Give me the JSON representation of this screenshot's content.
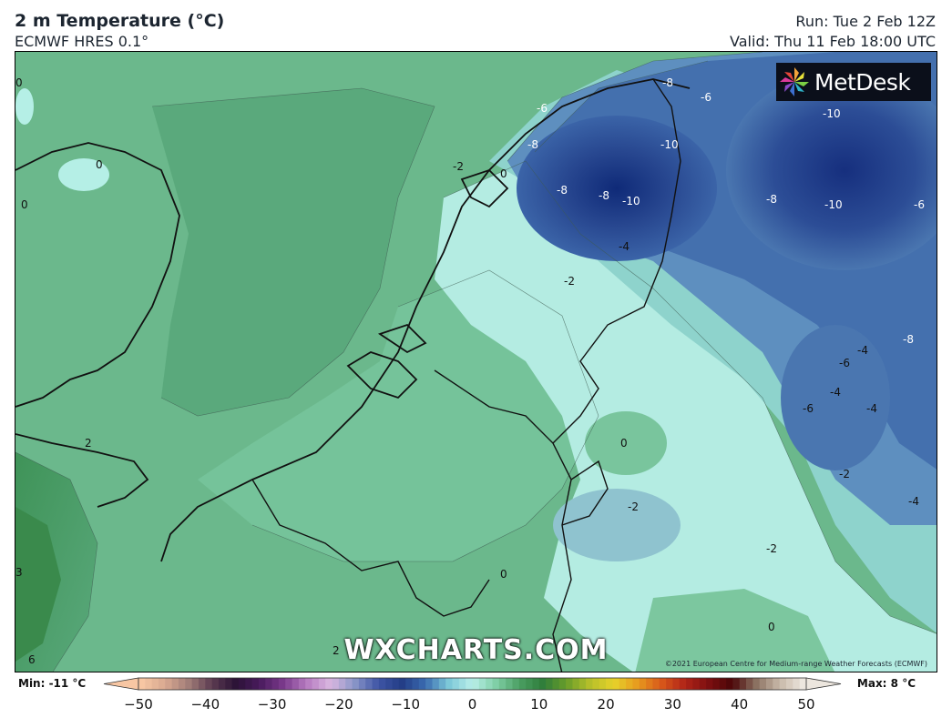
{
  "header": {
    "title": "2 m Temperature (°C)",
    "subtitle": "ECMWF HRES 0.1°",
    "run": "Run: Tue 2 Feb 12Z",
    "valid": "Valid: Thu 11 Feb 18:00 UTC"
  },
  "logo": {
    "text": "MetDesk"
  },
  "watermark": "WXCHARTS.COM",
  "copyright": "©2021 European Centre for Medium-range Weather Forecasts (ECMWF)",
  "map": {
    "contour_labels": [
      "0",
      "0",
      "0",
      "2",
      "-2",
      "0",
      "-6",
      "-8",
      "-8",
      "-8",
      "-10",
      "-10",
      "-8",
      "-6",
      "-10",
      "-8",
      "-10",
      "-6",
      "-4",
      "-2",
      "-4",
      "-6",
      "-4",
      "-4",
      "-6",
      "-8",
      "0",
      "-2",
      "-2",
      "-2",
      "-4",
      "0",
      "0",
      "2",
      "3",
      "6"
    ]
  },
  "colorbar": {
    "min_label": "Min: -11 °C",
    "max_label": "Max: 8 °C",
    "ticks": [
      "−50",
      "−40",
      "−30",
      "−20",
      "−10",
      "0",
      "10",
      "20",
      "30",
      "40",
      "50"
    ],
    "stops": [
      "#f7c6a3",
      "#d8a890",
      "#a07c78",
      "#5a3a50",
      "#2b1236",
      "#4a1b5e",
      "#7b3a8c",
      "#b77cc1",
      "#d9b7e0",
      "#8a96c8",
      "#3f55a6",
      "#233d86",
      "#3a6bb0",
      "#7cc8d8",
      "#b9efe8",
      "#7fcfa6",
      "#4a9e62",
      "#2f7d3a",
      "#6a9e2a",
      "#b7c02a",
      "#e6d12a",
      "#e79a1e",
      "#d8581a",
      "#b02418",
      "#7d0f10",
      "#4a0608",
      "#8a7060",
      "#c8b8a8",
      "#ece6de"
    ],
    "accent_colors": {
      "land_green": "#6fbf93",
      "sea_green": "#5aa97c",
      "cold_blue": "#1f3a86",
      "light_cyan": "#b5efe6"
    }
  }
}
